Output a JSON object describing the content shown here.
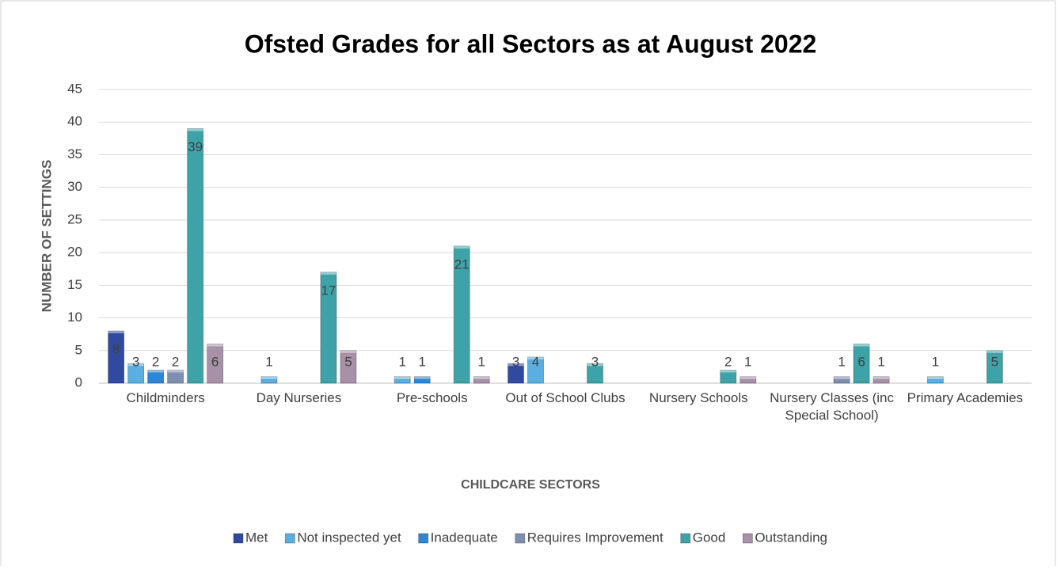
{
  "chart_data": {
    "type": "bar",
    "title": "Ofsted Grades for all Sectors as at August 2022",
    "x_label": "CHILDCARE SECTORS",
    "y_label": "NUMBER OF SETTINGS",
    "categories": [
      "Childminders",
      "Day Nurseries",
      "Pre-schools",
      "Out of School Clubs",
      "Nursery Schools",
      "Nursery Classes (inc Special School)",
      "Primary Academies"
    ],
    "series": [
      {
        "name": "Met",
        "color": "#2f4a9e",
        "values": [
          8,
          null,
          null,
          3,
          null,
          null,
          null
        ]
      },
      {
        "name": "Not inspected yet",
        "color": "#5aaee0",
        "values": [
          3,
          1,
          1,
          4,
          null,
          null,
          1
        ]
      },
      {
        "name": "Inadequate",
        "color": "#2d86d6",
        "values": [
          2,
          null,
          1,
          null,
          null,
          null,
          null
        ]
      },
      {
        "name": "Requires Improvement",
        "color": "#7f8fb0",
        "values": [
          2,
          null,
          null,
          null,
          null,
          1,
          null
        ]
      },
      {
        "name": "Good",
        "color": "#3ea3a8",
        "values": [
          39,
          17,
          21,
          3,
          2,
          6,
          5
        ]
      },
      {
        "name": "Outstanding",
        "color": "#a790a8",
        "values": [
          6,
          5,
          1,
          null,
          1,
          1,
          null
        ]
      }
    ],
    "ylim": [
      0,
      45
    ],
    "yticks": [
      0,
      5,
      10,
      15,
      20,
      25,
      30,
      35,
      40,
      45
    ],
    "grid": true,
    "legend": "bottom"
  }
}
